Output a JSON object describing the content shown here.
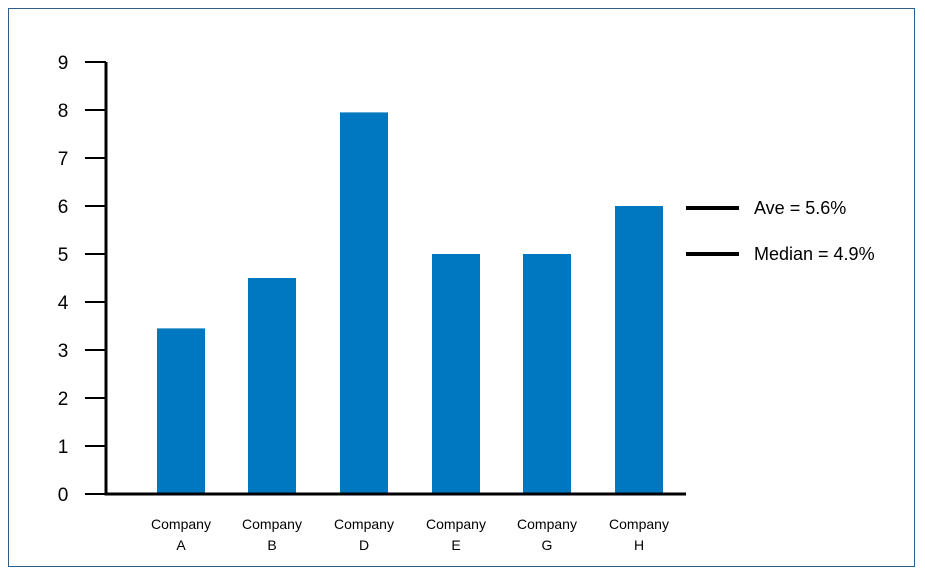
{
  "colors": {
    "bar": "#0077c1",
    "axis": "#000000",
    "frame": "#2f5d8a"
  },
  "chart_data": {
    "type": "bar",
    "categories": [
      [
        "Company",
        "A"
      ],
      [
        "Company",
        "B"
      ],
      [
        "Company",
        "D"
      ],
      [
        "Company",
        "E"
      ],
      [
        "Company",
        "G"
      ],
      [
        "Company",
        "H"
      ]
    ],
    "values": [
      3.45,
      4.5,
      7.95,
      5.0,
      5.0,
      6.0
    ],
    "ylim": [
      0,
      9
    ],
    "yticks": [
      "0",
      "1",
      "2",
      "3",
      "4",
      "5",
      "6",
      "7",
      "8",
      "9"
    ],
    "title": "",
    "xlabel": "",
    "ylabel": "",
    "grid": false,
    "legend_position": "right",
    "legend": [
      {
        "label": "Ave = 5.6%"
      },
      {
        "label": "Median = 4.9%"
      }
    ]
  }
}
